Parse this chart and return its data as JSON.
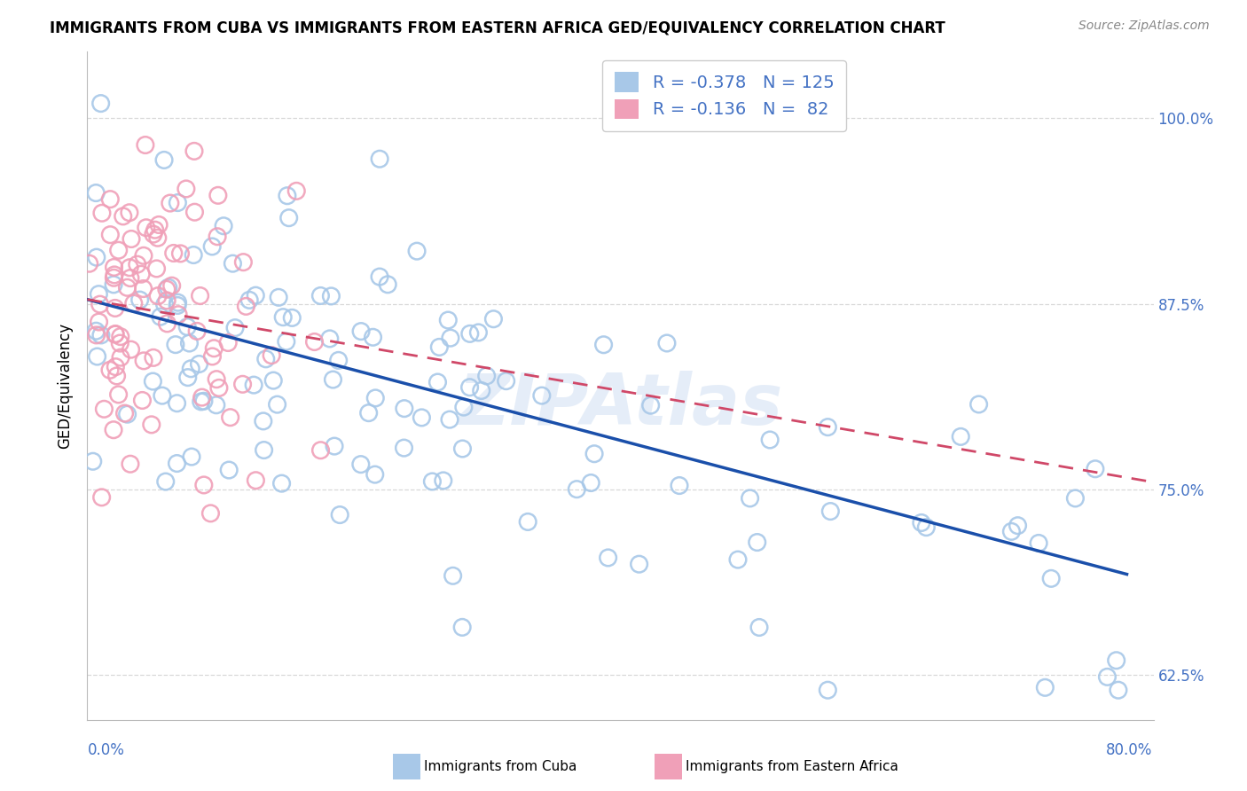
{
  "title": "IMMIGRANTS FROM CUBA VS IMMIGRANTS FROM EASTERN AFRICA GED/EQUIVALENCY CORRELATION CHART",
  "source": "Source: ZipAtlas.com",
  "ylabel": "GED/Equivalency",
  "yticks": [
    0.625,
    0.75,
    0.875,
    1.0
  ],
  "ytick_labels": [
    "62.5%",
    "75.0%",
    "87.5%",
    "100.0%"
  ],
  "xmin": 0.0,
  "xmax": 0.8,
  "ymin": 0.595,
  "ymax": 1.045,
  "blue_scatter_color": "#a8c8e8",
  "pink_scatter_color": "#f0a0b8",
  "blue_line_color": "#1a4faa",
  "pink_line_color": "#d04868",
  "blue_R": -0.378,
  "blue_N": 125,
  "pink_R": -0.136,
  "pink_N": 82,
  "legend_label_blue": "Immigrants from Cuba",
  "legend_label_pink": "Immigrants from Eastern Africa",
  "watermark": "ZIPAtlas",
  "title_fontsize": 12,
  "axis_label_color": "#4472c4",
  "grid_color": "#d8d8d8",
  "blue_line_y0": 0.878,
  "blue_line_y1": 0.693,
  "blue_line_x0": 0.0,
  "blue_line_x1": 0.78,
  "pink_line_y0": 0.878,
  "pink_line_y1": 0.755,
  "pink_line_x0": 0.0,
  "pink_line_x1": 0.8
}
